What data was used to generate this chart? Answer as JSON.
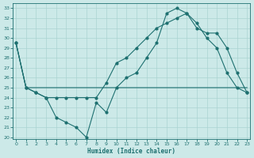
{
  "xlabel": "Humidex (Indice chaleur)",
  "background_color": "#cce9e8",
  "grid_color": "#aad4d2",
  "line_color": "#1e7070",
  "x_ticks": [
    0,
    1,
    2,
    3,
    4,
    5,
    6,
    7,
    8,
    9,
    10,
    11,
    12,
    13,
    14,
    15,
    16,
    17,
    18,
    19,
    20,
    21,
    22,
    23
  ],
  "y_ticks": [
    20,
    21,
    22,
    23,
    24,
    25,
    26,
    27,
    28,
    29,
    30,
    31,
    32,
    33
  ],
  "ylim": [
    19.8,
    33.5
  ],
  "xlim": [
    -0.3,
    23.3
  ],
  "line1_x": [
    0,
    1,
    2,
    3,
    4,
    5,
    6,
    7,
    8,
    9,
    10,
    11,
    12,
    13,
    14,
    15,
    16,
    17,
    18,
    19,
    20,
    21,
    22,
    23
  ],
  "line1_y": [
    29.5,
    25.0,
    24.5,
    24.0,
    22.0,
    21.5,
    21.0,
    20.0,
    23.5,
    22.5,
    25.0,
    26.0,
    26.5,
    28.0,
    29.5,
    32.5,
    33.0,
    32.5,
    31.5,
    30.0,
    29.0,
    26.5,
    25.0,
    24.5
  ],
  "line2_x": [
    0,
    1,
    2,
    3,
    4,
    5,
    6,
    7,
    8,
    9,
    10,
    11,
    12,
    13,
    14,
    15,
    16,
    17,
    18,
    19,
    20,
    21,
    22,
    23
  ],
  "line2_y": [
    29.5,
    25.0,
    25.0,
    25.0,
    25.0,
    25.0,
    25.0,
    25.0,
    25.0,
    25.0,
    25.0,
    25.0,
    25.0,
    25.0,
    25.0,
    25.0,
    25.0,
    25.0,
    25.0,
    25.0,
    25.0,
    25.0,
    25.0,
    25.0
  ],
  "line3_x": [
    0,
    1,
    2,
    3,
    4,
    5,
    6,
    7,
    8,
    9,
    10,
    11,
    12,
    13,
    14,
    15,
    16,
    17,
    18,
    19,
    20,
    21,
    22,
    23
  ],
  "line3_y": [
    29.5,
    25.0,
    24.5,
    24.0,
    24.0,
    24.0,
    24.0,
    24.0,
    24.0,
    25.5,
    27.5,
    28.0,
    29.0,
    30.0,
    31.0,
    31.5,
    32.0,
    32.5,
    31.0,
    30.5,
    30.5,
    29.0,
    26.5,
    24.5
  ]
}
